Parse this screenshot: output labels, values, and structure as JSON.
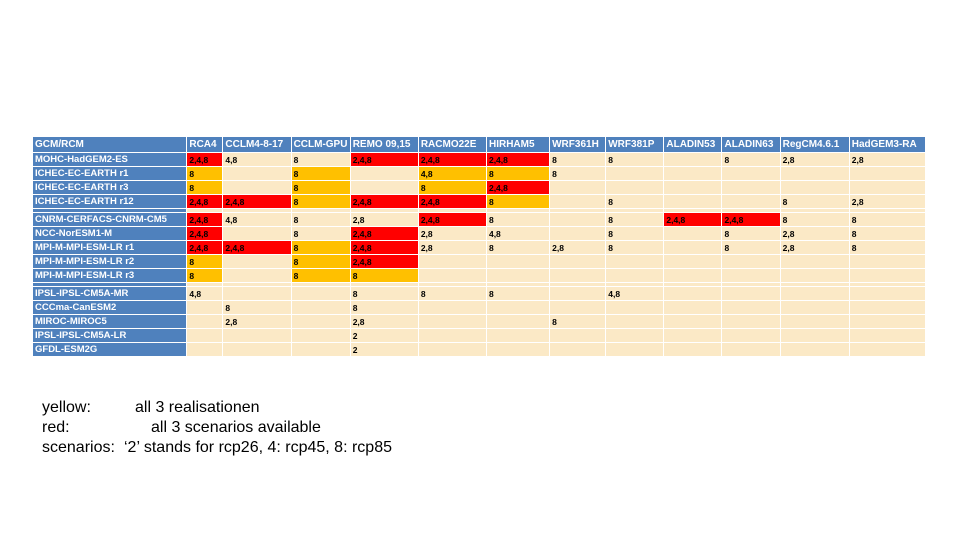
{
  "table": {
    "corner": "GCM/RCM",
    "columns": [
      "RCA4",
      "CCLM4-8-17",
      "CCLM-GPU",
      "REMO 09,15",
      "RACMO22E",
      "HIRHAM5",
      "WRF361H",
      "WRF381P",
      "ALADIN53",
      "ALADIN63",
      "RegCM4.6.1",
      "HadGEM3-RA"
    ],
    "rows": [
      {
        "name": "MOHC-HadGEM2-ES",
        "cells": [
          [
            "2,4,8",
            "r"
          ],
          [
            "4,8",
            ""
          ],
          [
            "8",
            ""
          ],
          [
            "2,4,8",
            "r"
          ],
          [
            "2,4,8",
            "r"
          ],
          [
            "2,4,8",
            "r"
          ],
          [
            "8",
            ""
          ],
          [
            "8",
            ""
          ],
          [
            "",
            ""
          ],
          [
            "8",
            ""
          ],
          [
            "2,8",
            ""
          ],
          [
            "2,8",
            ""
          ]
        ]
      },
      {
        "name": "ICHEC-EC-EARTH r1",
        "cells": [
          [
            "8",
            "y"
          ],
          [
            "",
            ""
          ],
          [
            "8",
            "y"
          ],
          [
            "",
            ""
          ],
          [
            "4,8",
            "y"
          ],
          [
            "8",
            "y"
          ],
          [
            "8",
            ""
          ],
          [
            "",
            ""
          ],
          [
            "",
            ""
          ],
          [
            "",
            ""
          ],
          [
            "",
            ""
          ],
          [
            "",
            ""
          ]
        ]
      },
      {
        "name": "ICHEC-EC-EARTH r3",
        "cells": [
          [
            "8",
            "y"
          ],
          [
            "",
            ""
          ],
          [
            "8",
            "y"
          ],
          [
            "",
            ""
          ],
          [
            "8",
            "y"
          ],
          [
            "2,4,8",
            "r"
          ],
          [
            "",
            ""
          ],
          [
            "",
            ""
          ],
          [
            "",
            ""
          ],
          [
            "",
            ""
          ],
          [
            "",
            ""
          ],
          [
            "",
            ""
          ]
        ]
      },
      {
        "name": "ICHEC-EC-EARTH r12",
        "cells": [
          [
            "2,4,8",
            "r"
          ],
          [
            "2,4,8",
            "r"
          ],
          [
            "8",
            "y"
          ],
          [
            "2,4,8",
            "r"
          ],
          [
            "2,4,8",
            "r"
          ],
          [
            "8",
            "y"
          ],
          [
            "",
            ""
          ],
          [
            "8",
            ""
          ],
          [
            "",
            ""
          ],
          [
            "",
            ""
          ],
          [
            "8",
            ""
          ],
          [
            "2,8",
            ""
          ]
        ]
      },
      {
        "gap": true
      },
      {
        "name": "CNRM-CERFACS-CNRM-CM5",
        "cells": [
          [
            "2,4,8",
            "r"
          ],
          [
            "4,8",
            ""
          ],
          [
            "8",
            ""
          ],
          [
            "2,8",
            ""
          ],
          [
            "2,4,8",
            "r"
          ],
          [
            "8",
            ""
          ],
          [
            "",
            ""
          ],
          [
            "8",
            ""
          ],
          [
            "2,4,8",
            "r"
          ],
          [
            "2,4,8",
            "r"
          ],
          [
            "8",
            ""
          ],
          [
            "8",
            ""
          ]
        ]
      },
      {
        "name": "NCC-NorESM1-M",
        "cells": [
          [
            "2,4,8",
            "r"
          ],
          [
            "",
            ""
          ],
          [
            "8",
            ""
          ],
          [
            "2,4,8",
            "r"
          ],
          [
            "2,8",
            ""
          ],
          [
            "4,8",
            ""
          ],
          [
            "",
            ""
          ],
          [
            "8",
            ""
          ],
          [
            "",
            ""
          ],
          [
            "8",
            ""
          ],
          [
            "2,8",
            ""
          ],
          [
            "8",
            ""
          ]
        ]
      },
      {
        "name": "MPI-M-MPI-ESM-LR r1",
        "cells": [
          [
            "2,4,8",
            "r"
          ],
          [
            "2,4,8",
            "r"
          ],
          [
            "8",
            "y"
          ],
          [
            "2,4,8",
            "r"
          ],
          [
            "2,8",
            ""
          ],
          [
            "8",
            ""
          ],
          [
            "2,8",
            ""
          ],
          [
            "8",
            ""
          ],
          [
            "",
            ""
          ],
          [
            "8",
            ""
          ],
          [
            "2,8",
            ""
          ],
          [
            "8",
            ""
          ]
        ]
      },
      {
        "name": "MPI-M-MPI-ESM-LR r2",
        "cells": [
          [
            "8",
            "y"
          ],
          [
            "",
            ""
          ],
          [
            "8",
            "y"
          ],
          [
            "2,4,8",
            "r"
          ],
          [
            "",
            ""
          ],
          [
            "",
            ""
          ],
          [
            "",
            ""
          ],
          [
            "",
            ""
          ],
          [
            "",
            ""
          ],
          [
            "",
            ""
          ],
          [
            "",
            ""
          ],
          [
            "",
            ""
          ]
        ]
      },
      {
        "name": "MPI-M-MPI-ESM-LR r3",
        "cells": [
          [
            "8",
            "y"
          ],
          [
            "",
            ""
          ],
          [
            "8",
            "y"
          ],
          [
            "8",
            "y"
          ],
          [
            "",
            ""
          ],
          [
            "",
            ""
          ],
          [
            "",
            ""
          ],
          [
            "",
            ""
          ],
          [
            "",
            ""
          ],
          [
            "",
            ""
          ],
          [
            "",
            ""
          ],
          [
            "",
            ""
          ]
        ]
      },
      {
        "gap": true
      },
      {
        "name": "IPSL-IPSL-CM5A-MR",
        "cells": [
          [
            "4,8",
            ""
          ],
          [
            "",
            ""
          ],
          [
            "",
            ""
          ],
          [
            "8",
            ""
          ],
          [
            "8",
            ""
          ],
          [
            "8",
            ""
          ],
          [
            "",
            ""
          ],
          [
            "4,8",
            ""
          ],
          [
            "",
            ""
          ],
          [
            "",
            ""
          ],
          [
            "",
            ""
          ],
          [
            "",
            ""
          ]
        ]
      },
      {
        "name": "CCCma-CanESM2",
        "cells": [
          [
            "",
            ""
          ],
          [
            "8",
            ""
          ],
          [
            "",
            ""
          ],
          [
            "8",
            ""
          ],
          [
            "",
            ""
          ],
          [
            "",
            ""
          ],
          [
            "",
            ""
          ],
          [
            "",
            ""
          ],
          [
            "",
            ""
          ],
          [
            "",
            ""
          ],
          [
            "",
            ""
          ],
          [
            "",
            ""
          ]
        ]
      },
      {
        "name": "MIROC-MIROC5",
        "cells": [
          [
            "",
            ""
          ],
          [
            "2,8",
            ""
          ],
          [
            "",
            ""
          ],
          [
            "2,8",
            ""
          ],
          [
            "",
            ""
          ],
          [
            "",
            ""
          ],
          [
            "8",
            ""
          ],
          [
            "",
            ""
          ],
          [
            "",
            ""
          ],
          [
            "",
            ""
          ],
          [
            "",
            ""
          ],
          [
            "",
            ""
          ]
        ]
      },
      {
        "name": "IPSL-IPSL-CM5A-LR",
        "cells": [
          [
            "",
            ""
          ],
          [
            "",
            ""
          ],
          [
            "",
            ""
          ],
          [
            "2",
            ""
          ],
          [
            "",
            ""
          ],
          [
            "",
            ""
          ],
          [
            "",
            ""
          ],
          [
            "",
            ""
          ],
          [
            "",
            ""
          ],
          [
            "",
            ""
          ],
          [
            "",
            ""
          ],
          [
            "",
            ""
          ]
        ]
      },
      {
        "name": "GFDL-ESM2G",
        "cells": [
          [
            "",
            ""
          ],
          [
            "",
            ""
          ],
          [
            "",
            ""
          ],
          [
            "2",
            ""
          ],
          [
            "",
            ""
          ],
          [
            "",
            ""
          ],
          [
            "",
            ""
          ],
          [
            "",
            ""
          ],
          [
            "",
            ""
          ],
          [
            "",
            ""
          ],
          [
            "",
            ""
          ],
          [
            "",
            ""
          ]
        ]
      }
    ]
  },
  "colors": {
    "header": "#4f81bd",
    "cell": "#fbe9c6",
    "yellow": "#ffc000",
    "red": "#ff0000"
  },
  "legend": {
    "yellow_key": "yellow:",
    "yellow_text": "all 3 realisationen",
    "red_key": "red:",
    "red_text": "all 3 scenarios available",
    "scen_key": "scenarios:",
    "scen_text": "‘2’ stands for rcp26, 4: rcp45, 8: rcp85"
  }
}
